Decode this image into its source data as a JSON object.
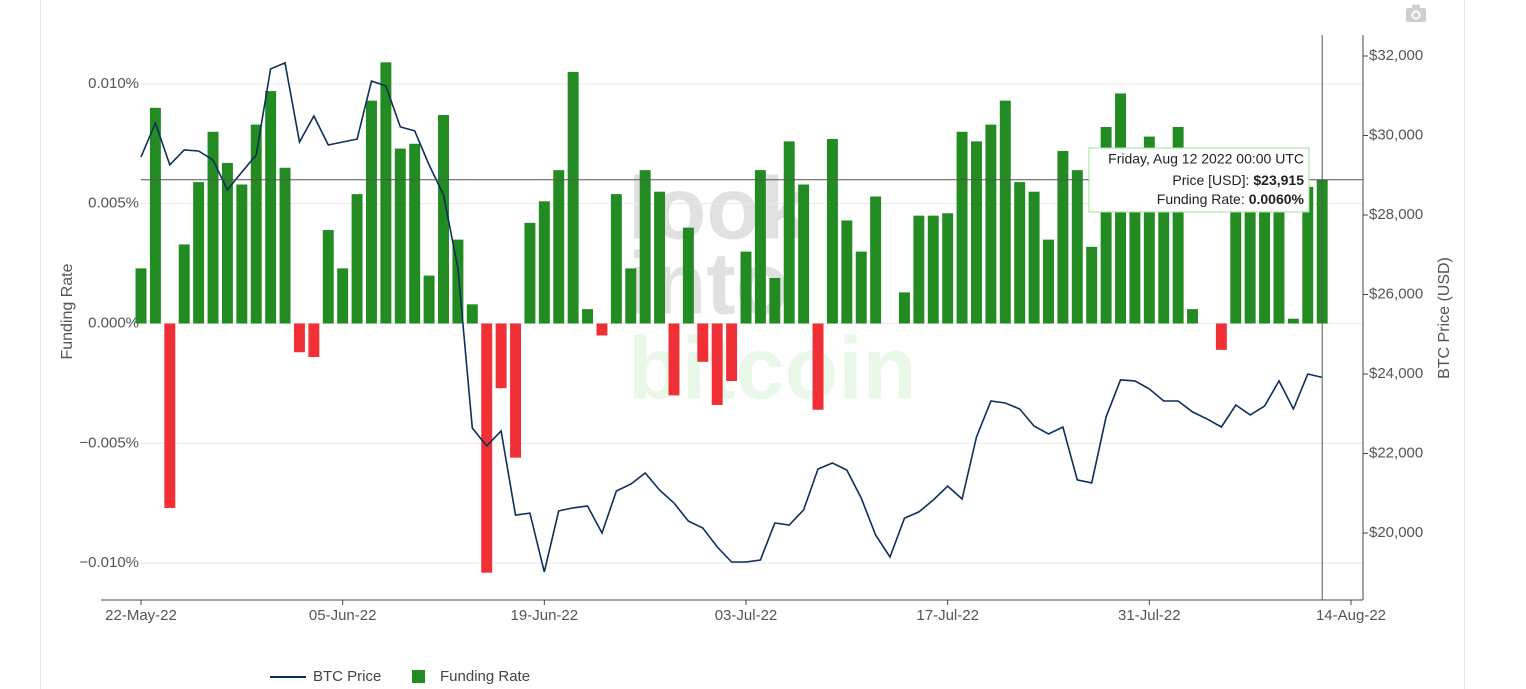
{
  "chart_data": {
    "type": "combo",
    "x": [
      "2022-05-22",
      "2022-05-23",
      "2022-05-24",
      "2022-05-25",
      "2022-05-26",
      "2022-05-27",
      "2022-05-28",
      "2022-05-29",
      "2022-05-30",
      "2022-05-31",
      "2022-06-01",
      "2022-06-02",
      "2022-06-03",
      "2022-06-04",
      "2022-06-05",
      "2022-06-06",
      "2022-06-07",
      "2022-06-08",
      "2022-06-09",
      "2022-06-10",
      "2022-06-11",
      "2022-06-12",
      "2022-06-13",
      "2022-06-14",
      "2022-06-15",
      "2022-06-16",
      "2022-06-17",
      "2022-06-18",
      "2022-06-19",
      "2022-06-20",
      "2022-06-21",
      "2022-06-22",
      "2022-06-23",
      "2022-06-24",
      "2022-06-25",
      "2022-06-26",
      "2022-06-27",
      "2022-06-28",
      "2022-06-29",
      "2022-06-30",
      "2022-07-01",
      "2022-07-02",
      "2022-07-03",
      "2022-07-04",
      "2022-07-05",
      "2022-07-06",
      "2022-07-07",
      "2022-07-08",
      "2022-07-09",
      "2022-07-10",
      "2022-07-11",
      "2022-07-12",
      "2022-07-13",
      "2022-07-14",
      "2022-07-15",
      "2022-07-16",
      "2022-07-17",
      "2022-07-18",
      "2022-07-19",
      "2022-07-20",
      "2022-07-21",
      "2022-07-22",
      "2022-07-23",
      "2022-07-24",
      "2022-07-25",
      "2022-07-26",
      "2022-07-27",
      "2022-07-28",
      "2022-07-29",
      "2022-07-30",
      "2022-07-31",
      "2022-08-01",
      "2022-08-02",
      "2022-08-03",
      "2022-08-04",
      "2022-08-05",
      "2022-08-06",
      "2022-08-07",
      "2022-08-08",
      "2022-08-09",
      "2022-08-10",
      "2022-08-11",
      "2022-08-12"
    ],
    "series": [
      {
        "name": "BTC Price",
        "type": "line",
        "axis": "y2",
        "color": "#0d2f5c",
        "values": [
          29460,
          30315,
          29260,
          29635,
          29610,
          29385,
          28630,
          29080,
          29510,
          31675,
          31825,
          29835,
          30490,
          29760,
          29835,
          29910,
          31370,
          31245,
          30215,
          30115,
          29260,
          28505,
          26665,
          22640,
          22190,
          22565,
          20450,
          20500,
          19020,
          20555,
          20630,
          20680,
          20000,
          21055,
          21230,
          21510,
          21080,
          20755,
          20300,
          20125,
          19650,
          19270,
          19270,
          19320,
          20250,
          20200,
          20580,
          21610,
          21760,
          21585,
          20880,
          19950,
          19395,
          20375,
          20530,
          20830,
          21180,
          20855,
          22415,
          23320,
          23270,
          23120,
          22690,
          22490,
          22665,
          21335,
          21260,
          22920,
          23850,
          23825,
          23625,
          23320,
          23320,
          23045,
          22870,
          22665,
          23220,
          22970,
          23195,
          23825,
          23120,
          24000,
          23915
        ]
      },
      {
        "name": "Funding Rate",
        "type": "bar",
        "color": "#228b22",
        "negative_color": "#f03035",
        "values": [
          0.0023,
          0.009,
          -0.0077,
          0.0033,
          0.0059,
          0.008,
          0.0067,
          0.0058,
          0.0083,
          0.0097,
          0.0065,
          -0.0012,
          -0.0014,
          0.0039,
          0.0023,
          0.0054,
          0.0093,
          0.0109,
          0.0073,
          0.0075,
          0.002,
          0.0087,
          0.0035,
          0.0008,
          -0.0104,
          -0.0027,
          -0.0056,
          0.0042,
          0.0051,
          0.0064,
          0.0105,
          0.0006,
          -0.0005,
          0.0054,
          0.0023,
          0.0064,
          0.0055,
          -0.003,
          0.004,
          -0.0016,
          -0.0034,
          -0.0024,
          0.003,
          0.0064,
          0.0019,
          0.0076,
          0.0058,
          -0.0036,
          0.0077,
          0.0043,
          0.003,
          0.0053,
          0,
          0.0013,
          0.0045,
          0.0045,
          0.0046,
          0.008,
          0.0076,
          0.0083,
          0.0093,
          0.0059,
          0.0055,
          0.0035,
          0.0072,
          0.0064,
          0.0032,
          0.0082,
          0.0096,
          0.0065,
          0.0078,
          0.0068,
          0.0082,
          0.0006,
          0,
          -0.0011,
          0.0062,
          0.006,
          0.0061,
          0.0058,
          0.0002,
          0.0057,
          0.006
        ]
      }
    ],
    "xlim": [
      "2022-05-22",
      "2022-08-14"
    ],
    "xticks": [
      {
        "value": "2022-05-22",
        "label": "22-May-22"
      },
      {
        "value": "2022-06-05",
        "label": "05-Jun-22"
      },
      {
        "value": "2022-06-19",
        "label": "19-Jun-22"
      },
      {
        "value": "2022-07-03",
        "label": "03-Jul-22"
      },
      {
        "value": "2022-07-17",
        "label": "17-Jul-22"
      },
      {
        "value": "2022-07-31",
        "label": "31-Jul-22"
      },
      {
        "value": "2022-08-14",
        "label": "14-Aug-22"
      }
    ],
    "ylabel": "Funding Rate",
    "ylim": [
      -0.01154,
      0.01204
    ],
    "yticks": [
      {
        "value": 0.01,
        "label": "0.010%"
      },
      {
        "value": 0.005,
        "label": "0.005%"
      },
      {
        "value": 0,
        "label": "0.000%"
      },
      {
        "value": -0.005,
        "label": "−0.005%"
      },
      {
        "value": -0.01,
        "label": "−0.010%"
      }
    ],
    "y2label": "BTC Price (USD)",
    "y2lim": [
      18314,
      32528
    ],
    "y2ticks": [
      {
        "value": 32000,
        "label": "$32,000"
      },
      {
        "value": 30000,
        "label": "$30,000"
      },
      {
        "value": 28000,
        "label": "$28,000"
      },
      {
        "value": 26000,
        "label": "$26,000"
      },
      {
        "value": 24000,
        "label": "$24,000"
      },
      {
        "value": 22000,
        "label": "$22,000"
      },
      {
        "value": 20000,
        "label": "$20,000"
      }
    ],
    "grid": true,
    "legend": "bottom",
    "watermark": [
      "look",
      "into",
      "bitcoin"
    ],
    "tooltip": {
      "title": "Friday, Aug 12 2022 00:00 UTC",
      "rows": [
        {
          "label": "Price [USD]:",
          "value": "$23,915"
        },
        {
          "label": "Funding Rate:",
          "value": "0.0060%"
        }
      ]
    }
  }
}
